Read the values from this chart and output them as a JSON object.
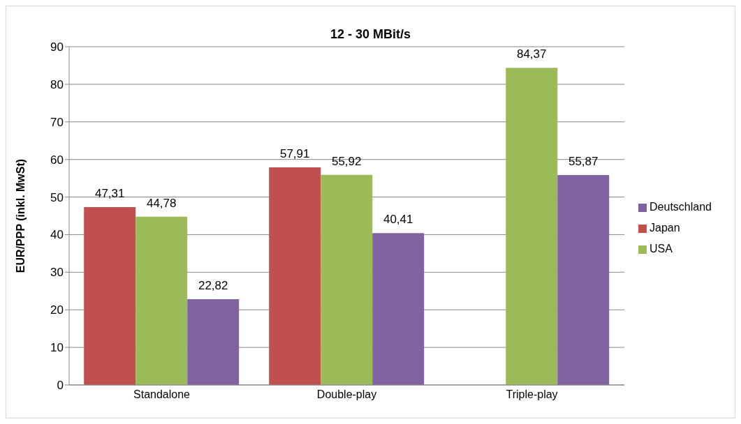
{
  "chart_data": {
    "type": "bar",
    "title": "12 - 30 MBit/s",
    "ylabel": "EUR/PPP (inkl. MwSt)",
    "categories": [
      "Standalone",
      "Double-play",
      "Triple-play"
    ],
    "series": [
      {
        "name": "Japan",
        "color": "#c0504d",
        "values": [
          47.31,
          57.91,
          null
        ],
        "value_labels": [
          "47,31",
          "57,91",
          null
        ]
      },
      {
        "name": "USA",
        "color": "#9bbb59",
        "values": [
          44.78,
          55.92,
          84.37
        ],
        "value_labels": [
          "44,78",
          "55,92",
          "84,37"
        ]
      },
      {
        "name": "Deutschland",
        "color": "#8064a2",
        "values": [
          22.82,
          40.41,
          55.87
        ],
        "value_labels": [
          "22,82",
          "40,41",
          "55,87"
        ]
      }
    ],
    "ylim": [
      0,
      90
    ],
    "yticks": [
      0,
      10,
      20,
      30,
      40,
      50,
      60,
      70,
      80,
      90
    ],
    "grid": "y",
    "legend": "right"
  }
}
